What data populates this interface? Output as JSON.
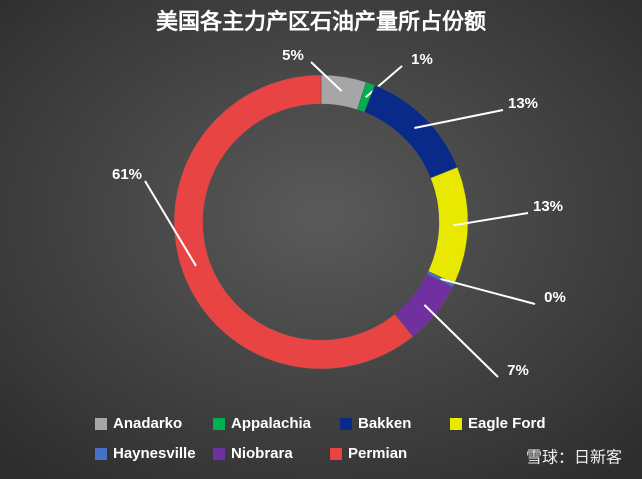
{
  "chart_data": {
    "type": "donut",
    "title": "美国各主力产区石油产量所占份额",
    "categories": [
      "Anadarko",
      "Appalachia",
      "Bakken",
      "Eagle Ford",
      "Haynesville",
      "Niobrara",
      "Permian"
    ],
    "values": [
      5,
      1,
      13,
      13,
      0.4,
      7,
      61
    ],
    "value_labels": [
      "5%",
      "1%",
      "13%",
      "13%",
      "0%",
      "7%",
      "61%"
    ],
    "colors": [
      "#a6a6a6",
      "#00b050",
      "#0a2a8a",
      "#e8e800",
      "#4472c4",
      "#7030a0",
      "#e84444"
    ],
    "legend": "bottom"
  },
  "watermark": "雪球：日新客"
}
